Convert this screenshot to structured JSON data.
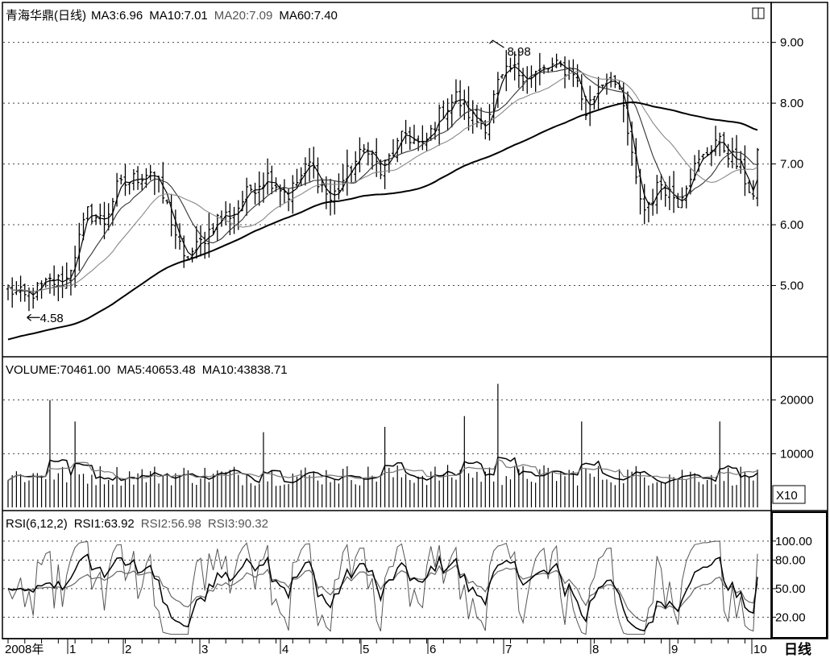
{
  "chart_data": [
    {
      "type": "candlestick",
      "title": "青海华鼎(日线)",
      "indicators": [
        {
          "name": "MA3",
          "value": "6.96"
        },
        {
          "name": "MA10",
          "value": "7.01"
        },
        {
          "name": "MA20",
          "value": "7.09"
        },
        {
          "name": "MA60",
          "value": "7.40"
        }
      ],
      "y_ticks": [
        "9.00",
        "8.00",
        "7.00",
        "6.00",
        "5.00"
      ],
      "ylim": [
        4.0,
        9.3
      ],
      "annotations": [
        {
          "label": "8.98",
          "x": 115,
          "y": 8.98
        },
        {
          "label": "4.58",
          "x": 3,
          "y": 4.58
        }
      ],
      "x_labels": [
        "2008年",
        "1",
        "2",
        "3",
        "4",
        "5",
        "6",
        "7",
        "8",
        "9",
        "10"
      ],
      "period_label": "日线",
      "n_bars": 180,
      "close_path": {
        "days": [
          0,
          4,
          10,
          14,
          19,
          23,
          26,
          30,
          34,
          38,
          42,
          46,
          50,
          54,
          58,
          62,
          67,
          72,
          77,
          82,
          86,
          89,
          92,
          95,
          99,
          103,
          107,
          111,
          114,
          117,
          120,
          125,
          130,
          135,
          138,
          141,
          144,
          147,
          150,
          152,
          156,
          160,
          163,
          166,
          169,
          172,
          175,
          178,
          179
        ],
        "close": [
          4.95,
          4.8,
          5.05,
          5.1,
          6.2,
          6.05,
          6.6,
          6.75,
          6.9,
          6.3,
          5.4,
          5.7,
          6.1,
          6.2,
          6.6,
          6.8,
          6.5,
          7.0,
          6.4,
          6.95,
          7.3,
          6.85,
          7.2,
          7.5,
          7.25,
          7.8,
          8.1,
          7.75,
          7.65,
          8.3,
          8.55,
          8.45,
          8.6,
          8.55,
          7.85,
          8.3,
          8.5,
          7.9,
          6.7,
          6.25,
          6.7,
          6.4,
          6.85,
          7.1,
          7.4,
          7.2,
          6.9,
          6.45,
          7.1
        ]
      }
    },
    {
      "type": "bar",
      "title": "VOLUME",
      "indicators": [
        {
          "name": "VOLUME",
          "value": "70461.00"
        },
        {
          "name": "MA5",
          "value": "40653.48"
        },
        {
          "name": "MA10",
          "value": "43838.71"
        }
      ],
      "y_ticks": [
        "20000",
        "10000"
      ],
      "ylim": [
        0,
        24000
      ],
      "unit_label": "X10",
      "base_level": [
        4000,
        8000
      ],
      "spikes": [
        {
          "day": 10,
          "value": 20000
        },
        {
          "day": 16,
          "value": 16000
        },
        {
          "day": 61,
          "value": 14000
        },
        {
          "day": 90,
          "value": 15000
        },
        {
          "day": 109,
          "value": 17000
        },
        {
          "day": 117,
          "value": 23000
        },
        {
          "day": 137,
          "value": 16000
        },
        {
          "day": 170,
          "value": 16000
        },
        {
          "day": 179,
          "value": 7046
        }
      ]
    },
    {
      "type": "line",
      "title": "RSI(6,12,2)",
      "indicators": [
        {
          "name": "RSI1",
          "value": "63.92"
        },
        {
          "name": "RSI2",
          "value": "56.98"
        },
        {
          "name": "RSI3",
          "value": "90.32"
        }
      ],
      "y_ticks": [
        "100.00",
        "80.00",
        "50.00",
        "20.00"
      ],
      "ylim": [
        0,
        110
      ]
    }
  ]
}
